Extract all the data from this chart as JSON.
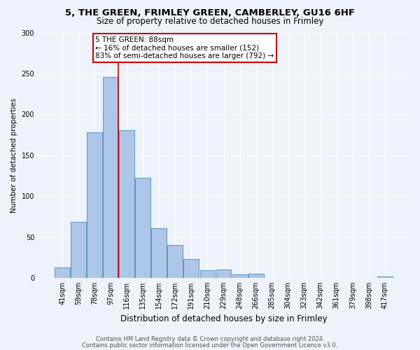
{
  "title1": "5, THE GREEN, FRIMLEY GREEN, CAMBERLEY, GU16 6HF",
  "title2": "Size of property relative to detached houses in Frimley",
  "xlabel": "Distribution of detached houses by size in Frimley",
  "ylabel": "Number of detached properties",
  "bar_labels": [
    "41sqm",
    "59sqm",
    "78sqm",
    "97sqm",
    "116sqm",
    "135sqm",
    "154sqm",
    "172sqm",
    "191sqm",
    "210sqm",
    "229sqm",
    "248sqm",
    "266sqm",
    "285sqm",
    "304sqm",
    "323sqm",
    "342sqm",
    "361sqm",
    "379sqm",
    "398sqm",
    "417sqm"
  ],
  "bar_values": [
    13,
    68,
    178,
    246,
    181,
    122,
    61,
    40,
    23,
    9,
    10,
    4,
    5,
    0,
    0,
    0,
    0,
    0,
    0,
    0,
    2
  ],
  "bar_color": "#aec6e8",
  "bar_edge_color": "#5a96c8",
  "ylim": [
    0,
    300
  ],
  "yticks": [
    0,
    50,
    100,
    150,
    200,
    250,
    300
  ],
  "property_label": "5 THE GREEN: 88sqm",
  "annotation_line1": "← 16% of detached houses are smaller (152)",
  "annotation_line2": "83% of semi-detached houses are larger (792) →",
  "vline_bin_index": 3,
  "annotation_box_color": "#ffffff",
  "annotation_box_edge_color": "#cc0000",
  "vline_color": "#cc0000",
  "footer1": "Contains HM Land Registry data © Crown copyright and database right 2024.",
  "footer2": "Contains public sector information licensed under the Open Government Licence v3.0.",
  "background_color": "#eef2fa",
  "plot_bg_color": "#eef2fa",
  "title1_fontsize": 9.5,
  "title2_fontsize": 8.5,
  "ylabel_fontsize": 7.5,
  "xlabel_fontsize": 8.5,
  "tick_fontsize": 7,
  "annotation_fontsize": 7.5,
  "footer_fontsize": 6
}
